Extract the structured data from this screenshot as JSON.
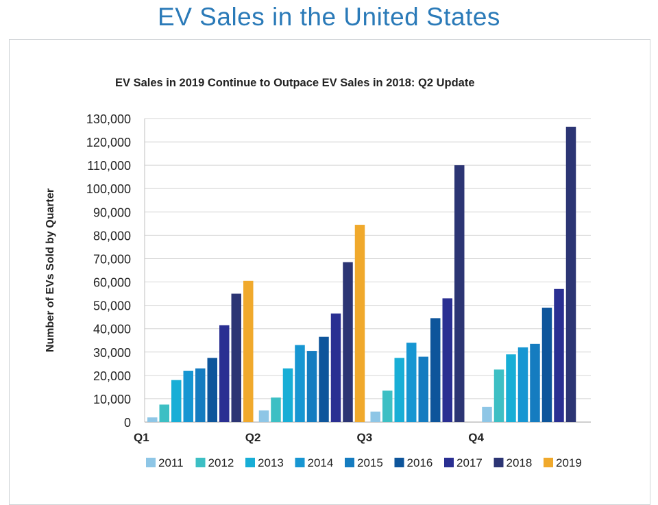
{
  "page_title": "EV Sales in the United States",
  "chart_data": {
    "type": "bar",
    "title": "EV Sales in 2019 Continue to Outpace EV Sales in 2018: Q2 Update",
    "xlabel": "",
    "ylabel": "Number of EVs Sold by Quarter",
    "ylim": [
      0,
      130000
    ],
    "yticks": [
      "0",
      "10,000",
      "20,000",
      "30,000",
      "40,000",
      "50,000",
      "60,000",
      "70,000",
      "80,000",
      "90,000",
      "100,000",
      "110,000",
      "120,000",
      "130,000"
    ],
    "categories": [
      "Q1",
      "Q2",
      "Q3",
      "Q4"
    ],
    "grid": true,
    "legend_position": "bottom",
    "series": [
      {
        "name": "2011",
        "color": "#8ec6e6",
        "values": [
          2000,
          5000,
          4500,
          6500
        ]
      },
      {
        "name": "2012",
        "color": "#3dbfc4",
        "values": [
          7500,
          10500,
          13500,
          22500
        ]
      },
      {
        "name": "2013",
        "color": "#18aed6",
        "values": [
          18000,
          23000,
          27500,
          29000
        ]
      },
      {
        "name": "2014",
        "color": "#1796d2",
        "values": [
          22000,
          33000,
          34000,
          32000
        ]
      },
      {
        "name": "2015",
        "color": "#157cc0",
        "values": [
          23000,
          30500,
          28000,
          33500
        ]
      },
      {
        "name": "2016",
        "color": "#0e559b",
        "values": [
          27500,
          36500,
          44500,
          49000
        ]
      },
      {
        "name": "2017",
        "color": "#2a2f92",
        "values": [
          41500,
          46500,
          53000,
          57000
        ]
      },
      {
        "name": "2018",
        "color": "#2c3574",
        "values": [
          55000,
          68500,
          110000,
          126500
        ]
      },
      {
        "name": "2019",
        "color": "#f0a92c",
        "values": [
          60500,
          84500,
          null,
          null
        ]
      }
    ]
  }
}
